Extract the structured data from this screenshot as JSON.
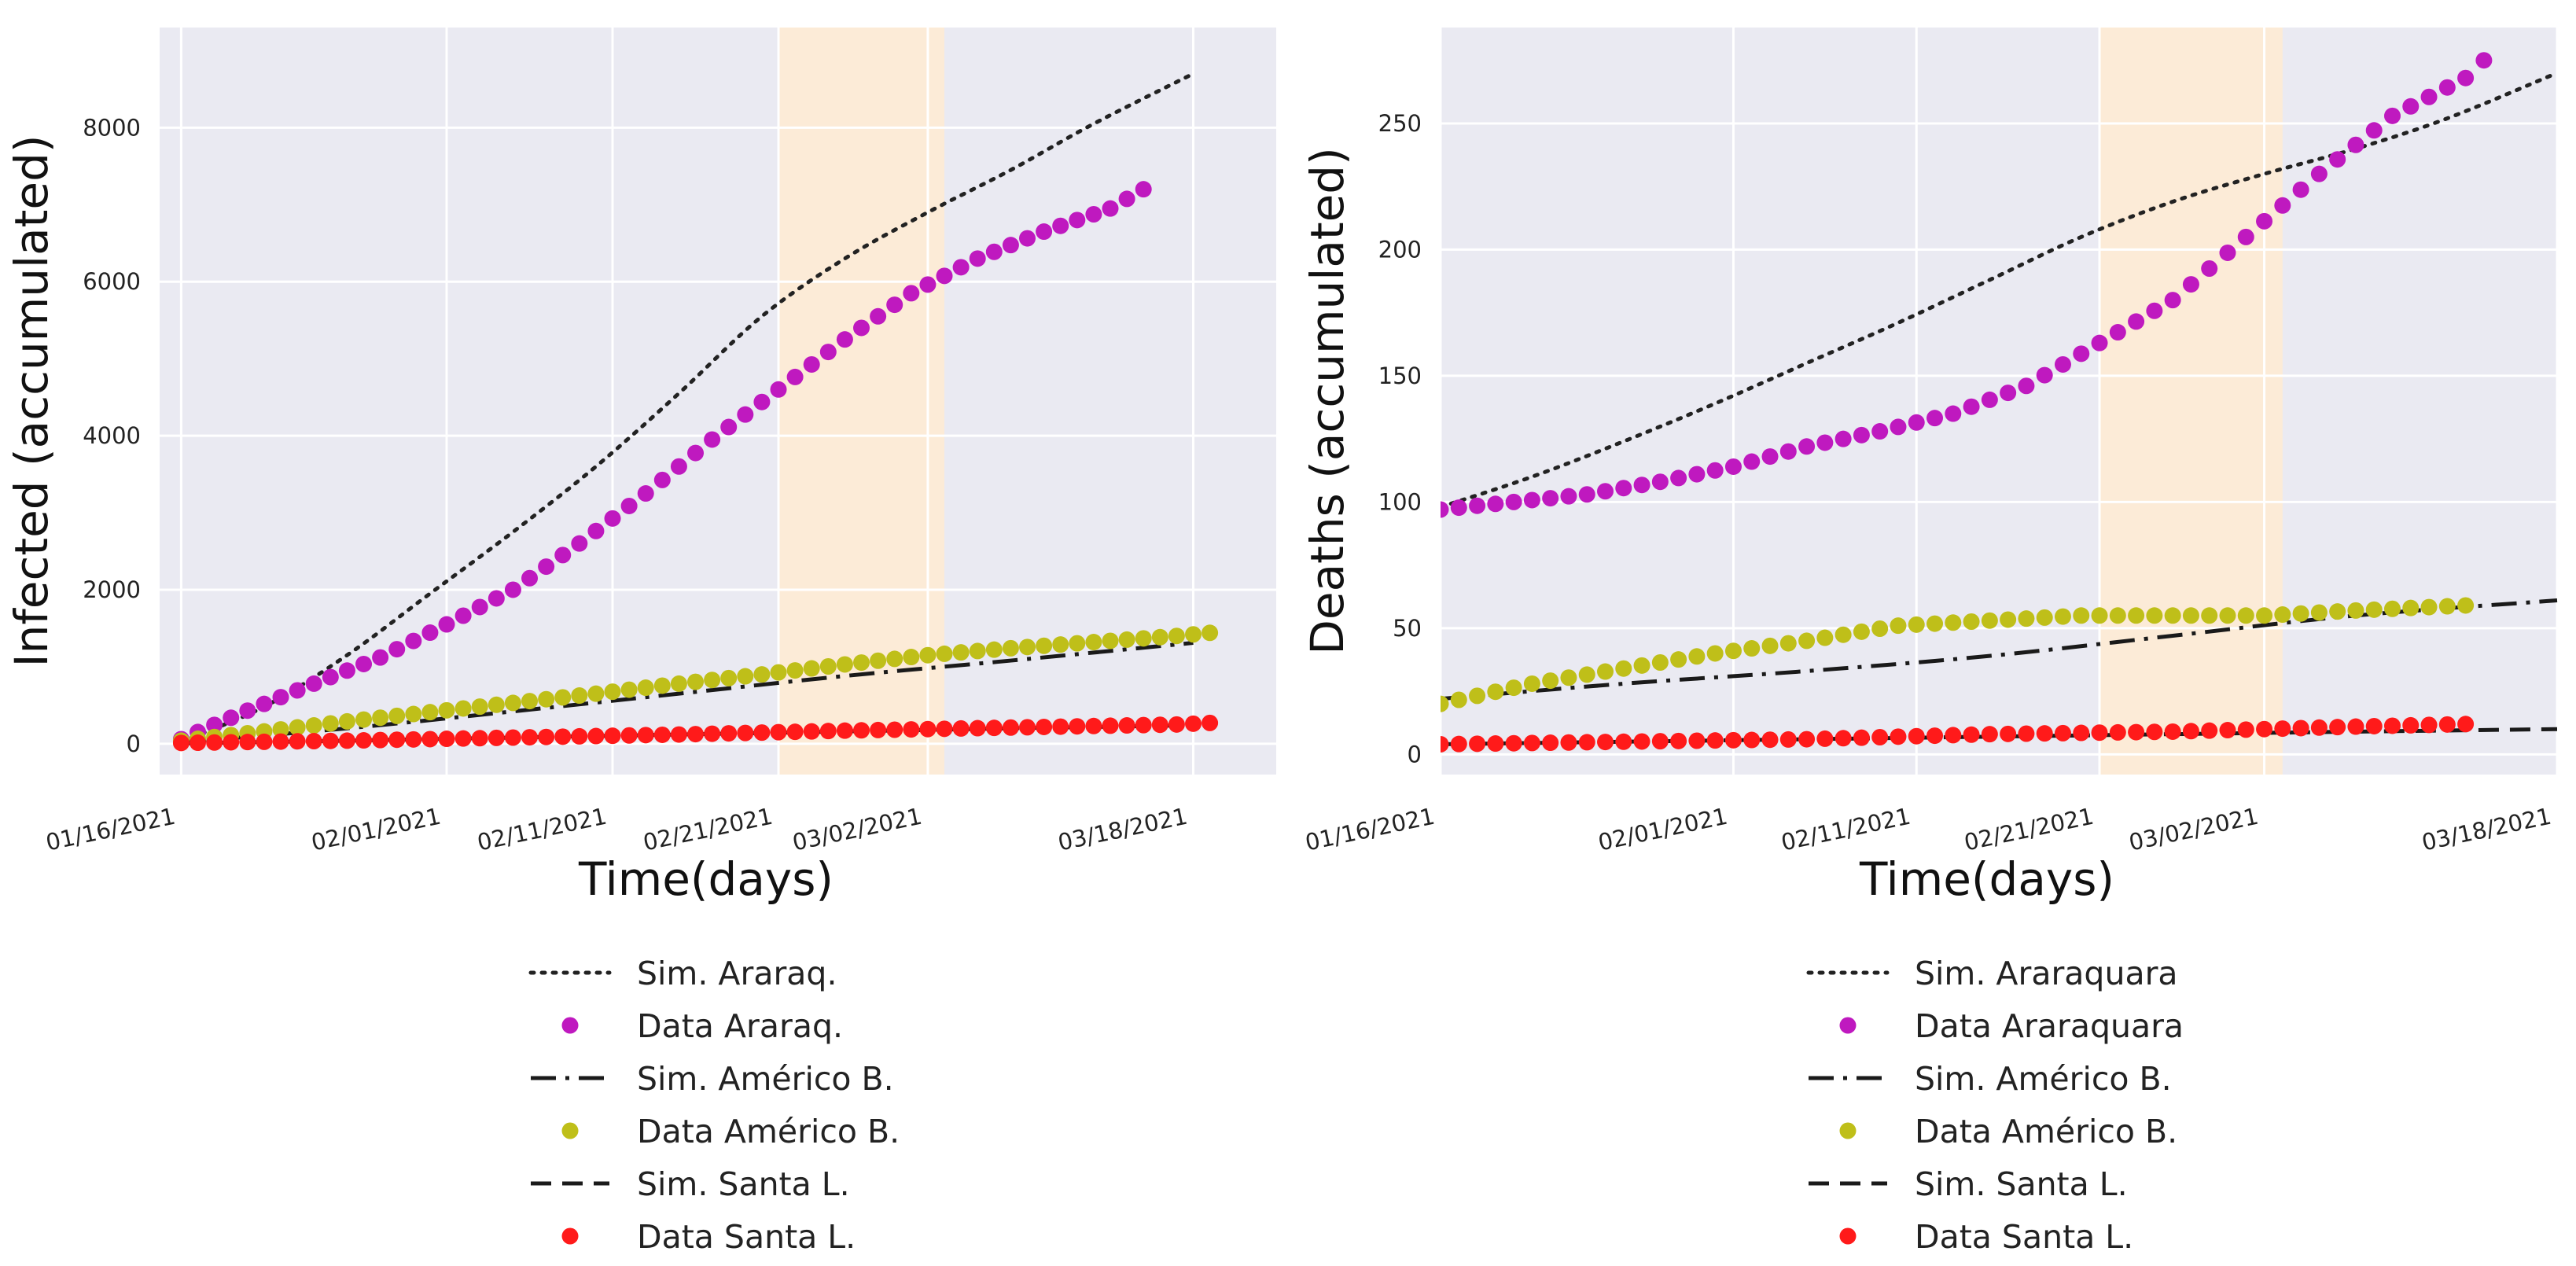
{
  "chart_data": [
    {
      "type": "line",
      "xlabel": "Time(days)",
      "ylabel": "Infected (accumulated)",
      "x_range_days": [
        -1.3,
        66
      ],
      "ylim": [
        -400,
        9300
      ],
      "yticks": [
        0,
        2000,
        4000,
        6000,
        8000
      ],
      "xticks": [
        {
          "day": 0,
          "label": "01/16/2021"
        },
        {
          "day": 16,
          "label": "02/01/2021"
        },
        {
          "day": 26,
          "label": "02/11/2021"
        },
        {
          "day": 36,
          "label": "02/21/2021"
        },
        {
          "day": 45,
          "label": "03/02/2021"
        },
        {
          "day": 61,
          "label": "03/18/2021"
        }
      ],
      "highlight_span_days": [
        36,
        46
      ],
      "highlight_color": "#fcebd7",
      "series": [
        {
          "name": "Sim. Araraq.",
          "style": "dotted",
          "color": "#222222",
          "x": [
            0,
            5,
            10,
            15,
            20,
            25,
            30,
            35,
            40,
            45,
            50,
            55,
            61
          ],
          "values": [
            30,
            480,
            1150,
            1950,
            2750,
            3600,
            4550,
            5550,
            6300,
            6900,
            7450,
            8050,
            8700
          ]
        },
        {
          "name": "Data Araraq.",
          "style": "dots",
          "color": "#bf19bf",
          "x": [
            0,
            4,
            8,
            12,
            16,
            20,
            24,
            28,
            32,
            36,
            40,
            44,
            48,
            52,
            56,
            58
          ],
          "values": [
            60,
            430,
            780,
            1120,
            1550,
            2000,
            2600,
            3250,
            3950,
            4600,
            5250,
            5850,
            6300,
            6650,
            6950,
            7200
          ]
        },
        {
          "name": "Sim. Américo B.",
          "style": "dashdot",
          "color": "#1a1a1a",
          "x": [
            0,
            10,
            20,
            30,
            40,
            50,
            61
          ],
          "values": [
            20,
            200,
            420,
            650,
            880,
            1080,
            1310
          ]
        },
        {
          "name": "Data Américo B.",
          "style": "dots",
          "color": "#bfbf19",
          "x": [
            0,
            5,
            10,
            15,
            20,
            25,
            30,
            35,
            40,
            45,
            50,
            55,
            60,
            62
          ],
          "values": [
            40,
            160,
            290,
            410,
            530,
            650,
            780,
            900,
            1030,
            1150,
            1240,
            1320,
            1400,
            1440
          ]
        },
        {
          "name": "Sim. Santa L.",
          "style": "dashed",
          "color": "#1a1a1a",
          "x": [
            0,
            10,
            20,
            30,
            40,
            50,
            61
          ],
          "values": [
            5,
            40,
            80,
            120,
            160,
            200,
            240
          ]
        },
        {
          "name": "Data Santa L.",
          "style": "dots",
          "color": "#ff1a1a",
          "x": [
            0,
            10,
            20,
            30,
            40,
            50,
            60,
            62
          ],
          "values": [
            10,
            40,
            80,
            120,
            170,
            210,
            250,
            270
          ]
        }
      ],
      "legend": [
        "Sim. Araraq.",
        "Data Araraq.",
        "Sim. Américo B.",
        "Data Américo B.",
        "Sim. Santa L.",
        "Data Santa L."
      ]
    },
    {
      "type": "line",
      "xlabel": "Time(days)",
      "ylabel": "Deaths (accumulated)",
      "x_range_days": [
        0,
        61
      ],
      "ylim": [
        -8,
        288
      ],
      "yticks": [
        0,
        50,
        100,
        150,
        200,
        250
      ],
      "xticks": [
        {
          "day": 0,
          "label": "01/16/2021"
        },
        {
          "day": 16,
          "label": "02/01/2021"
        },
        {
          "day": 26,
          "label": "02/11/2021"
        },
        {
          "day": 36,
          "label": "02/21/2021"
        },
        {
          "day": 45,
          "label": "03/02/2021"
        },
        {
          "day": 61,
          "label": "03/18/2021"
        }
      ],
      "highlight_span_days": [
        36,
        46
      ],
      "highlight_color": "#fcebd7",
      "series": [
        {
          "name": "Sim. Araraquara",
          "style": "dotted",
          "color": "#222222",
          "x": [
            0,
            5,
            10,
            15,
            20,
            25,
            30,
            35,
            40,
            45,
            50,
            55,
            61
          ],
          "values": [
            98,
            110,
            124,
            139,
            155,
            171,
            188,
            205,
            219,
            230,
            240,
            252,
            270
          ]
        },
        {
          "name": "Data Araraquara",
          "style": "dots",
          "color": "#bf19bf",
          "x": [
            0,
            4,
            8,
            12,
            16,
            20,
            24,
            28,
            32,
            36,
            40,
            44,
            48,
            52,
            56,
            57
          ],
          "values": [
            97,
            100,
            103,
            108,
            114,
            122,
            128,
            135,
            146,
            163,
            180,
            205,
            230,
            253,
            268,
            275
          ]
        },
        {
          "name": "Sim. Américo B.",
          "style": "dashdot",
          "color": "#1a1a1a",
          "x": [
            0,
            10,
            20,
            30,
            40,
            50,
            61
          ],
          "values": [
            22,
            28,
            33,
            39,
            47,
            55,
            61
          ]
        },
        {
          "name": "Data Américo B.",
          "style": "dots",
          "color": "#bfbf19",
          "x": [
            0,
            5,
            10,
            15,
            20,
            25,
            30,
            35,
            40,
            45,
            50,
            56
          ],
          "values": [
            20,
            28,
            34,
            40,
            45,
            51,
            53,
            55,
            55,
            55,
            57,
            59
          ]
        },
        {
          "name": "Sim. Santa L.",
          "style": "dashed",
          "color": "#1a1a1a",
          "x": [
            0,
            10,
            20,
            30,
            40,
            50,
            61
          ],
          "values": [
            4,
            5,
            6,
            7,
            8,
            9,
            10
          ]
        },
        {
          "name": "Data Santa L.",
          "style": "dots",
          "color": "#ff1a1a",
          "x": [
            0,
            10,
            20,
            30,
            40,
            50,
            56
          ],
          "values": [
            4,
            5,
            6,
            8,
            9,
            11,
            12
          ]
        }
      ],
      "legend": [
        "Sim. Araraquara",
        "Data Araraquara",
        "Sim. Américo B.",
        "Data Américo B.",
        "Sim. Santa L.",
        "Data Santa L."
      ]
    }
  ]
}
